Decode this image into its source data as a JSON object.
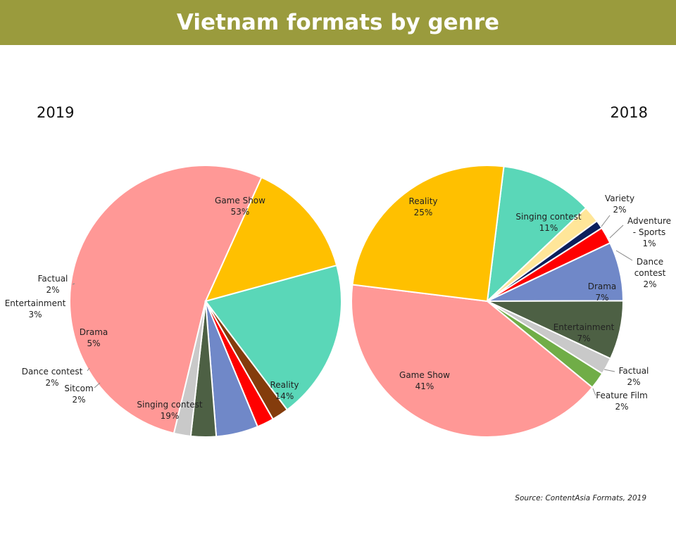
{
  "title": "Vietnam formats by genre",
  "source": "Source: ContentAsia Formats, 2019",
  "chart_data": [
    {
      "type": "pie",
      "title": "2019",
      "slices": [
        {
          "label": "Game Show",
          "value": 53,
          "display": "53%",
          "color": "#ff9896"
        },
        {
          "label": "Reality",
          "value": 14,
          "display": "14%",
          "color": "#ffc000"
        },
        {
          "label": "Singing contest",
          "value": 19,
          "display": "19%",
          "color": "#5ad7b8"
        },
        {
          "label": "Sitcom",
          "value": 2,
          "display": "2%",
          "color": "#843c0c"
        },
        {
          "label": "Dance contest",
          "value": 2,
          "display": "2%",
          "color": "#ff0000"
        },
        {
          "label": "Drama",
          "value": 5,
          "display": "5%",
          "color": "#7088c8"
        },
        {
          "label": "Entertainment",
          "value": 3,
          "display": "3%",
          "color": "#4d6044"
        },
        {
          "label": "Factual",
          "value": 2,
          "display": "2%",
          "color": "#c9c9c9"
        }
      ]
    },
    {
      "type": "pie",
      "title": "2018",
      "slices": [
        {
          "label": "Singing contest",
          "value": 11,
          "display": "11%",
          "color": "#5ad7b8"
        },
        {
          "label": "Variety",
          "value": 2,
          "display": "2%",
          "color": "#ffe699"
        },
        {
          "label": "Adventure - Sports",
          "value": 1,
          "display": "1%",
          "color": "#0b1f5c"
        },
        {
          "label": "Dance contest",
          "value": 2,
          "display": "2%",
          "color": "#ff0000"
        },
        {
          "label": "Drama",
          "value": 7,
          "display": "7%",
          "color": "#7088c8"
        },
        {
          "label": "Entertainment",
          "value": 7,
          "display": "7%",
          "color": "#4d6044"
        },
        {
          "label": "Factual",
          "value": 2,
          "display": "2%",
          "color": "#c9c9c9"
        },
        {
          "label": "Feature Film",
          "value": 2,
          "display": "2%",
          "color": "#70ad47"
        },
        {
          "label": "Game Show",
          "value": 41,
          "display": "41%",
          "color": "#ff9896"
        },
        {
          "label": "Reality",
          "value": 25,
          "display": "25%",
          "color": "#ffc000"
        }
      ]
    }
  ]
}
